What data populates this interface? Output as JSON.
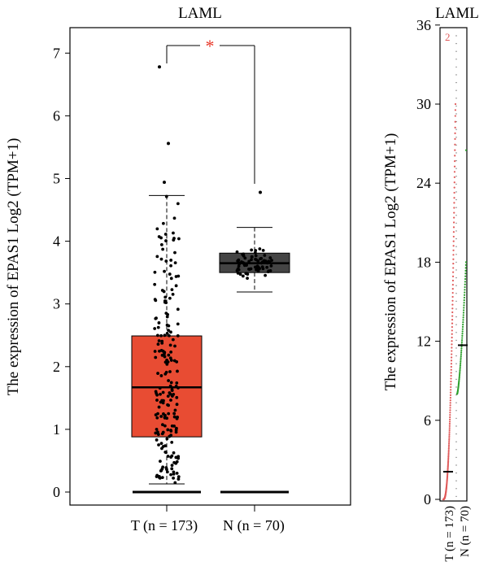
{
  "chart_data": [
    {
      "type": "box",
      "title": "LAML",
      "ylabel": "The expression of EPAS1 Log2 (TPM+1)",
      "ylim": [
        -0.2,
        7.5
      ],
      "yticks": [
        0,
        1,
        2,
        3,
        4,
        5,
        6,
        7
      ],
      "groups": [
        {
          "label": "T (n = 173)",
          "color": "#e84c33",
          "whisker_low": 0.13,
          "q1": 0.88,
          "median": 1.67,
          "q3": 2.49,
          "whisker_high": 4.73,
          "outliers": [
            4.94,
            5.56,
            6.78
          ]
        },
        {
          "label": "N (n = 70)",
          "color": "#444444",
          "whisker_low": 3.19,
          "q1": 3.5,
          "median": 3.65,
          "q3": 3.81,
          "whisker_high": 4.22,
          "outliers": [
            4.78
          ]
        }
      ],
      "significance": "*",
      "significance_color": "#e8392a"
    },
    {
      "type": "scatter",
      "title": "LAML",
      "ylabel": "The expression of EPAS1 Log2 (TPM+1)",
      "ylim": [
        0,
        36
      ],
      "yticks": [
        0,
        6,
        12,
        18,
        24,
        30,
        36
      ],
      "corner_label": "2",
      "categories": [
        "T (n = 173)",
        "N (n = 70)"
      ],
      "series": [
        {
          "label": "T (n = 173)",
          "color": "#e05a5a",
          "median": 2.1
        },
        {
          "label": "N (n = 70)",
          "color": "#2ca02c",
          "median": 11.7
        }
      ]
    }
  ]
}
